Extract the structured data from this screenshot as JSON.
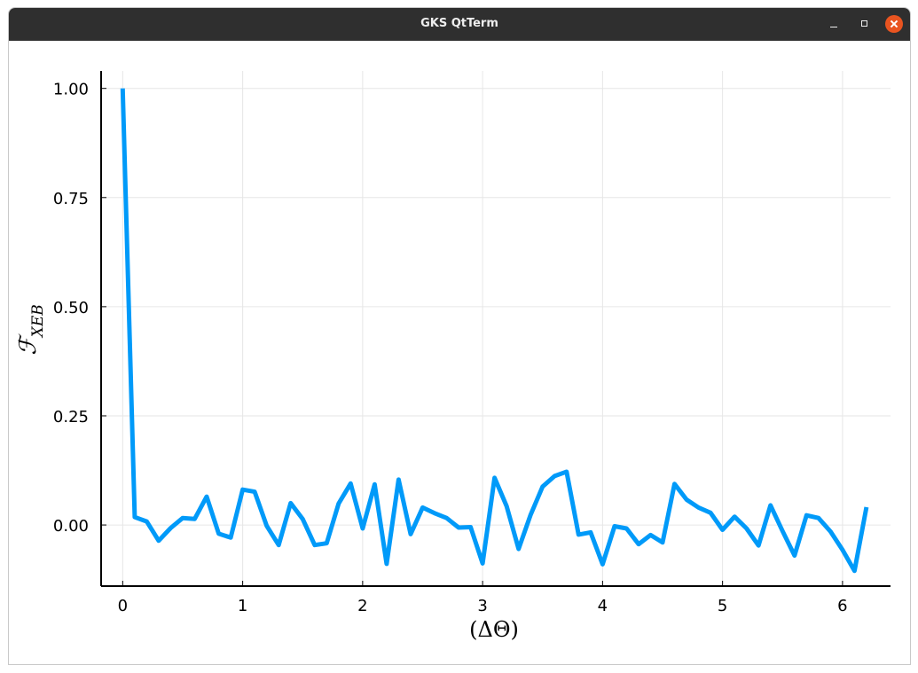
{
  "window": {
    "title": "GKS QtTerm",
    "controls": {
      "minimize_icon": "minimize-icon",
      "maximize_icon": "maximize-icon",
      "close_icon": "close-icon"
    },
    "close_color": "#e95420",
    "titlebar_color": "#2f2f2f"
  },
  "chart_data": {
    "type": "line",
    "xlabel": "(ΔΘ)",
    "ylabel": "ℱ",
    "ylabel_subscript": "XEB",
    "xlim": [
      -0.18,
      6.4
    ],
    "ylim": [
      -0.14,
      1.04
    ],
    "xticks": [
      0,
      1,
      2,
      3,
      4,
      5,
      6
    ],
    "xtick_labels": [
      "0",
      "1",
      "2",
      "3",
      "4",
      "5",
      "6"
    ],
    "yticks": [
      0.0,
      0.25,
      0.5,
      0.75,
      1.0
    ],
    "ytick_labels": [
      "0.00",
      "0.25",
      "0.50",
      "0.75",
      "1.00"
    ],
    "grid": true,
    "legend": "none",
    "series": [
      {
        "color": "#009af9",
        "x": [
          0.0,
          0.1,
          0.2,
          0.3,
          0.4,
          0.5,
          0.6,
          0.7,
          0.8,
          0.9,
          1.0,
          1.1,
          1.2,
          1.3,
          1.4,
          1.5,
          1.6,
          1.7,
          1.8,
          1.9,
          2.0,
          2.1,
          2.2,
          2.3,
          2.4,
          2.5,
          2.6,
          2.7,
          2.8,
          2.9,
          3.0,
          3.1,
          3.2,
          3.3,
          3.4,
          3.5,
          3.6,
          3.7,
          3.8,
          3.9,
          4.0,
          4.1,
          4.2,
          4.3,
          4.4,
          4.5,
          4.6,
          4.7,
          4.8,
          4.9,
          5.0,
          5.1,
          5.2,
          5.3,
          5.4,
          5.5,
          5.6,
          5.7,
          5.8,
          5.9,
          6.0,
          6.1,
          6.2
        ],
        "y": [
          1.0,
          0.018,
          0.008,
          -0.036,
          -0.007,
          0.016,
          0.014,
          0.065,
          -0.02,
          -0.029,
          0.081,
          0.076,
          -0.002,
          -0.046,
          0.05,
          0.014,
          -0.046,
          -0.042,
          0.049,
          0.095,
          -0.008,
          0.093,
          -0.089,
          0.104,
          -0.021,
          0.04,
          0.027,
          0.016,
          -0.006,
          -0.005,
          -0.088,
          0.108,
          0.043,
          -0.055,
          0.023,
          0.088,
          0.112,
          0.122,
          -0.022,
          -0.017,
          -0.09,
          -0.003,
          -0.008,
          -0.044,
          -0.023,
          -0.04,
          0.094,
          0.058,
          0.04,
          0.028,
          -0.011,
          0.019,
          -0.008,
          -0.047,
          0.045,
          -0.014,
          -0.07,
          0.022,
          0.016,
          -0.015,
          -0.057,
          -0.105,
          0.041
        ]
      }
    ]
  }
}
